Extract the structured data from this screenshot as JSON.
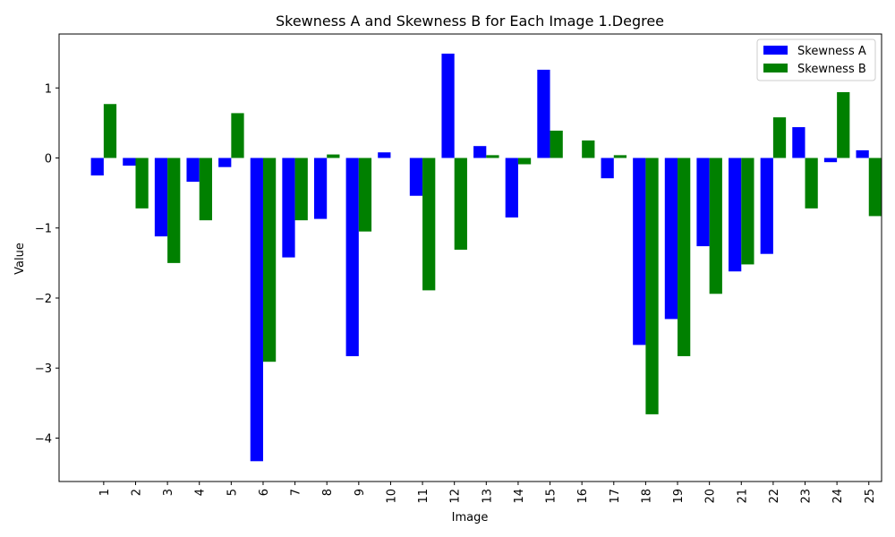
{
  "chart_data": {
    "type": "bar",
    "title": "Skewness A and Skewness B for Each Image 1.Degree",
    "xlabel": "Image",
    "ylabel": "Value",
    "categories": [
      "1",
      "2",
      "3",
      "4",
      "5",
      "6",
      "7",
      "8",
      "9",
      "10",
      "11",
      "12",
      "13",
      "14",
      "15",
      "16",
      "17",
      "18",
      "19",
      "20",
      "21",
      "22",
      "23",
      "24",
      "25"
    ],
    "series": [
      {
        "name": "Skewness A",
        "color": "#0000ff",
        "values": [
          -0.25,
          -0.11,
          -1.12,
          -0.34,
          -0.13,
          -4.33,
          -1.42,
          -0.87,
          -2.83,
          0.08,
          -0.54,
          1.49,
          0.17,
          -0.85,
          1.26,
          0.0,
          -0.29,
          -2.67,
          -2.3,
          -1.26,
          -1.62,
          -1.37,
          0.44,
          -0.06,
          0.11
        ]
      },
      {
        "name": "Skewness B",
        "color": "#008000",
        "values": [
          0.77,
          -0.72,
          -1.5,
          -0.89,
          0.64,
          -2.91,
          -0.89,
          0.05,
          -1.05,
          0.0,
          -1.89,
          -1.31,
          0.04,
          -0.09,
          0.39,
          0.25,
          0.04,
          -3.66,
          -2.83,
          -1.94,
          -1.52,
          0.58,
          -0.72,
          0.94,
          -0.83
        ]
      }
    ],
    "yticks": [
      -4,
      -3,
      -2,
      -1,
      0,
      1
    ],
    "ytick_labels": [
      "−4",
      "−3",
      "−2",
      "−1",
      "0",
      "1"
    ],
    "ylim": [
      -4.62,
      1.77
    ],
    "grid": false,
    "legend_position": "upper right"
  }
}
